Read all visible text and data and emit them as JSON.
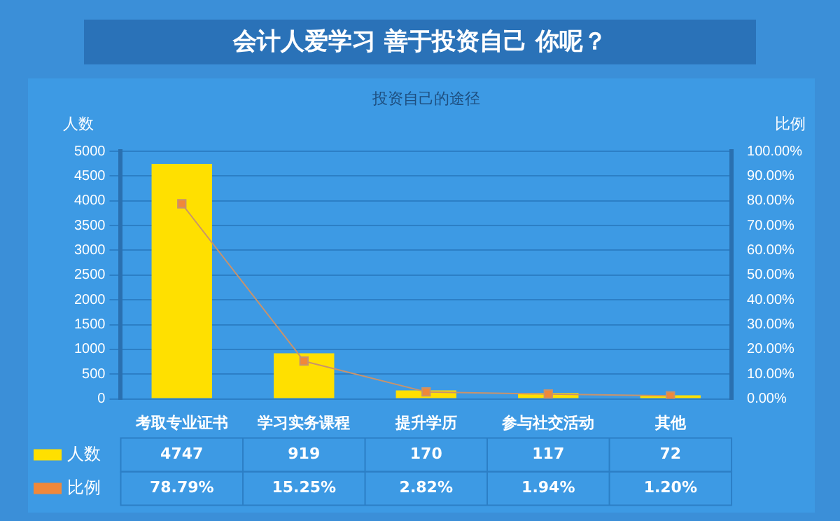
{
  "chart_data": {
    "type": "bar",
    "title": "会计人爱学习  善于投资自己  你呢？",
    "subtitle": "投资自己的途径",
    "ylabel": "人数",
    "y2label": "比例",
    "categories": [
      "考取专业证书",
      "学习实务课程",
      "提升学历",
      "参与社交活动",
      "其他"
    ],
    "series": [
      {
        "name": "人数",
        "color": "#ffe000",
        "values": [
          4747,
          919,
          170,
          117,
          72
        ],
        "value_labels": [
          "4747",
          "919",
          "170",
          "117",
          "72"
        ]
      },
      {
        "name": "比例",
        "type": "line",
        "axis": "y2",
        "color": "#f0883a",
        "marker": "square",
        "values": [
          78.79,
          15.25,
          2.82,
          1.94,
          1.2
        ],
        "value_labels": [
          "78.79%",
          "15.25%",
          "2.82%",
          "1.94%",
          "1.20%"
        ]
      }
    ],
    "ylim": [
      0,
      5000
    ],
    "yticks": [
      0,
      500,
      1000,
      1500,
      2000,
      2500,
      3000,
      3500,
      4000,
      4500,
      5000
    ],
    "y2lim": [
      0,
      100
    ],
    "y2ticks": [
      {
        "value": 0,
        "label": "0.00%"
      },
      {
        "value": 10,
        "label": "10.00%"
      },
      {
        "value": 20,
        "label": "20.00%"
      },
      {
        "value": 30,
        "label": "30.00%"
      },
      {
        "value": 40,
        "label": "40.00%"
      },
      {
        "value": 50,
        "label": "50.00%"
      },
      {
        "value": 60,
        "label": "60.00%"
      },
      {
        "value": 70,
        "label": "70.00%"
      },
      {
        "value": 80,
        "label": "80.00%"
      },
      {
        "value": 90,
        "label": "90.00%"
      },
      {
        "value": 100,
        "label": "100.00%"
      }
    ],
    "grid": "y",
    "legend": "bottom left"
  }
}
